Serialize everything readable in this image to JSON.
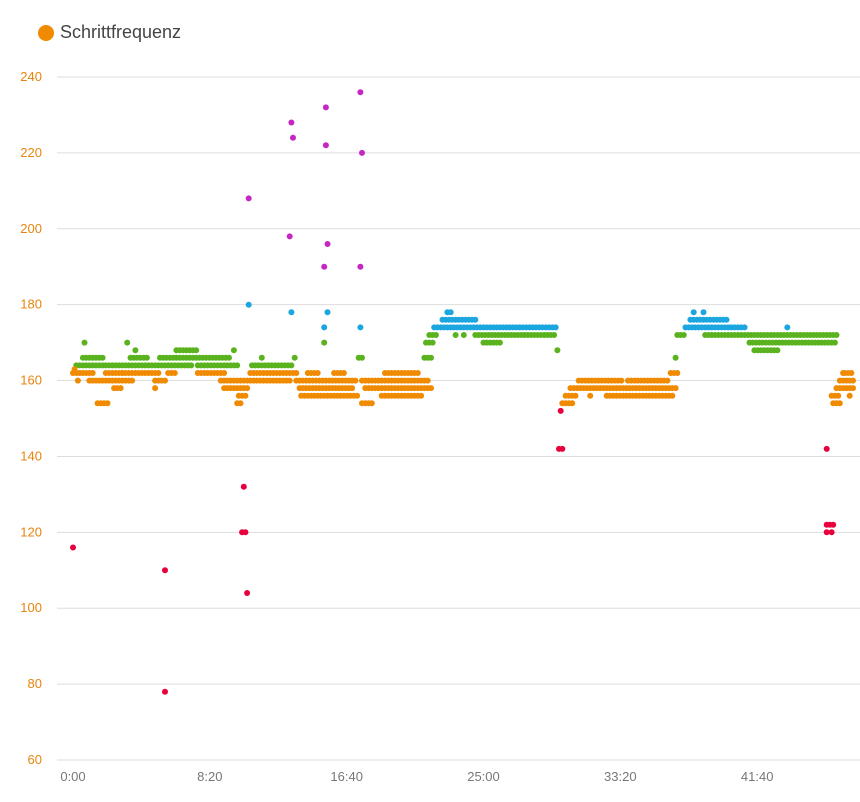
{
  "legend": {
    "label": "Schrittfrequenz",
    "color": "#f08a00"
  },
  "chart_data": {
    "type": "scatter",
    "title": "",
    "xlabel": "",
    "ylabel": "",
    "legend": [
      "Schrittfrequenz"
    ],
    "legend_position": "top-left",
    "grid": true,
    "x_unit": "minutes",
    "xlim": [
      0,
      47.5
    ],
    "ylim": [
      60,
      240
    ],
    "x_ticks": [
      "0:00",
      "8:20",
      "16:40",
      "25:00",
      "33:20",
      "41:40"
    ],
    "x_tick_values": [
      0,
      8.333,
      16.667,
      25,
      33.333,
      41.667
    ],
    "y_ticks": [
      "240",
      "220",
      "200",
      "180",
      "160",
      "140",
      "120",
      "100",
      "80",
      "60"
    ],
    "y_tick_values": [
      240,
      220,
      200,
      180,
      160,
      140,
      120,
      100,
      80,
      60
    ],
    "color_bands": [
      {
        "name": "red",
        "color": "#e8003d"
      },
      {
        "name": "orange",
        "color": "#f08a00"
      },
      {
        "name": "green",
        "color": "#5ab31e"
      },
      {
        "name": "blue",
        "color": "#1ba6e0"
      },
      {
        "name": "magenta",
        "color": "#c626c4"
      }
    ],
    "runs": [
      {
        "color": "orange",
        "x0": 0.0,
        "x1": 0.4,
        "y": 162
      },
      {
        "color": "orange",
        "x0": 0.4,
        "x1": 1.2,
        "y": 162
      },
      {
        "color": "orange",
        "x0": 1.0,
        "x1": 2.0,
        "y": 160
      },
      {
        "color": "orange",
        "x0": 1.5,
        "x1": 2.1,
        "y": 154
      },
      {
        "color": "orange",
        "x0": 2.0,
        "x1": 5.3,
        "y": 162
      },
      {
        "color": "orange",
        "x0": 2.2,
        "x1": 3.6,
        "y": 160
      },
      {
        "color": "orange",
        "x0": 2.5,
        "x1": 2.9,
        "y": 158
      },
      {
        "color": "orange",
        "x0": 5.0,
        "x1": 5.6,
        "y": 160
      },
      {
        "color": "orange",
        "x0": 5.8,
        "x1": 6.3,
        "y": 162
      },
      {
        "color": "orange",
        "x0": 7.6,
        "x1": 9.2,
        "y": 162
      },
      {
        "color": "orange",
        "x0": 9.0,
        "x1": 10.6,
        "y": 160
      },
      {
        "color": "orange",
        "x0": 9.2,
        "x1": 10.6,
        "y": 158
      },
      {
        "color": "orange",
        "x0": 10.1,
        "x1": 10.5,
        "y": 156
      },
      {
        "color": "orange",
        "x0": 10.0,
        "x1": 10.3,
        "y": 154
      },
      {
        "color": "orange",
        "x0": 10.8,
        "x1": 13.7,
        "y": 162
      },
      {
        "color": "orange",
        "x0": 10.8,
        "x1": 13.2,
        "y": 160
      },
      {
        "color": "orange",
        "x0": 13.6,
        "x1": 17.3,
        "y": 160
      },
      {
        "color": "orange",
        "x0": 13.8,
        "x1": 17.0,
        "y": 158
      },
      {
        "color": "orange",
        "x0": 14.3,
        "x1": 15.0,
        "y": 162
      },
      {
        "color": "orange",
        "x0": 15.9,
        "x1": 16.5,
        "y": 162
      },
      {
        "color": "orange",
        "x0": 13.9,
        "x1": 17.3,
        "y": 156
      },
      {
        "color": "orange",
        "x0": 17.6,
        "x1": 21.6,
        "y": 160
      },
      {
        "color": "orange",
        "x0": 17.8,
        "x1": 21.8,
        "y": 158
      },
      {
        "color": "orange",
        "x0": 18.8,
        "x1": 21.2,
        "y": 156
      },
      {
        "color": "orange",
        "x0": 17.6,
        "x1": 18.3,
        "y": 154
      },
      {
        "color": "orange",
        "x0": 19.0,
        "x1": 21.0,
        "y": 162
      },
      {
        "color": "orange",
        "x0": 29.8,
        "x1": 30.4,
        "y": 154
      },
      {
        "color": "orange",
        "x0": 30.0,
        "x1": 30.6,
        "y": 156
      },
      {
        "color": "orange",
        "x0": 30.3,
        "x1": 36.7,
        "y": 158
      },
      {
        "color": "orange",
        "x0": 30.8,
        "x1": 33.5,
        "y": 160
      },
      {
        "color": "orange",
        "x0": 33.8,
        "x1": 36.2,
        "y": 160
      },
      {
        "color": "orange",
        "x0": 32.5,
        "x1": 36.6,
        "y": 156
      },
      {
        "color": "orange",
        "x0": 36.4,
        "x1": 36.9,
        "y": 162
      },
      {
        "color": "orange",
        "x0": 46.2,
        "x1": 46.7,
        "y": 156
      },
      {
        "color": "orange",
        "x0": 46.3,
        "x1": 46.7,
        "y": 154
      },
      {
        "color": "orange",
        "x0": 46.5,
        "x1": 47.5,
        "y": 158
      },
      {
        "color": "orange",
        "x0": 46.7,
        "x1": 47.5,
        "y": 160
      },
      {
        "color": "orange",
        "x0": 47.0,
        "x1": 47.5,
        "y": 162
      },
      {
        "color": "green",
        "x0": 0.2,
        "x1": 2.8,
        "y": 164
      },
      {
        "color": "green",
        "x0": 0.6,
        "x1": 1.8,
        "y": 166
      },
      {
        "color": "green",
        "x0": 3.0,
        "x1": 7.2,
        "y": 164
      },
      {
        "color": "green",
        "x0": 3.5,
        "x1": 4.5,
        "y": 166
      },
      {
        "color": "green",
        "x0": 5.3,
        "x1": 9.6,
        "y": 166
      },
      {
        "color": "green",
        "x0": 6.3,
        "x1": 7.6,
        "y": 168
      },
      {
        "color": "green",
        "x0": 7.6,
        "x1": 10.0,
        "y": 164
      },
      {
        "color": "green",
        "x0": 10.9,
        "x1": 13.4,
        "y": 164
      },
      {
        "color": "green",
        "x0": 21.4,
        "x1": 21.8,
        "y": 166
      },
      {
        "color": "green",
        "x0": 21.5,
        "x1": 21.9,
        "y": 170
      },
      {
        "color": "green",
        "x0": 21.7,
        "x1": 22.2,
        "y": 172
      },
      {
        "color": "green",
        "x0": 24.5,
        "x1": 29.4,
        "y": 172
      },
      {
        "color": "green",
        "x0": 25.0,
        "x1": 26.0,
        "y": 170
      },
      {
        "color": "green",
        "x0": 36.8,
        "x1": 37.3,
        "y": 172
      },
      {
        "color": "green",
        "x0": 38.5,
        "x1": 46.6,
        "y": 172
      },
      {
        "color": "green",
        "x0": 41.5,
        "x1": 43.0,
        "y": 168
      },
      {
        "color": "green",
        "x0": 41.2,
        "x1": 46.5,
        "y": 170
      },
      {
        "color": "blue",
        "x0": 22.0,
        "x1": 29.4,
        "y": 174
      },
      {
        "color": "blue",
        "x0": 22.5,
        "x1": 24.5,
        "y": 176
      },
      {
        "color": "blue",
        "x0": 37.3,
        "x1": 41.0,
        "y": 174
      },
      {
        "color": "blue",
        "x0": 37.6,
        "x1": 39.8,
        "y": 176
      }
    ],
    "points": [
      {
        "color": "red",
        "x": 0.0,
        "y": 116
      },
      {
        "color": "orange",
        "x": 0.1,
        "y": 163
      },
      {
        "color": "orange",
        "x": 0.3,
        "y": 160
      },
      {
        "color": "green",
        "x": 0.7,
        "y": 170
      },
      {
        "color": "green",
        "x": 1.2,
        "y": 166
      },
      {
        "color": "green",
        "x": 3.3,
        "y": 170
      },
      {
        "color": "green",
        "x": 3.8,
        "y": 168
      },
      {
        "color": "orange",
        "x": 3.0,
        "y": 162
      },
      {
        "color": "orange",
        "x": 5.0,
        "y": 158
      },
      {
        "color": "red",
        "x": 5.6,
        "y": 110
      },
      {
        "color": "red",
        "x": 5.6,
        "y": 78
      },
      {
        "color": "green",
        "x": 9.8,
        "y": 168
      },
      {
        "color": "red",
        "x": 10.4,
        "y": 132
      },
      {
        "color": "red",
        "x": 10.3,
        "y": 120
      },
      {
        "color": "red",
        "x": 10.5,
        "y": 120
      },
      {
        "color": "red",
        "x": 10.6,
        "y": 104
      },
      {
        "color": "magenta",
        "x": 10.7,
        "y": 208
      },
      {
        "color": "blue",
        "x": 10.7,
        "y": 180
      },
      {
        "color": "green",
        "x": 11.5,
        "y": 166
      },
      {
        "color": "magenta",
        "x": 13.3,
        "y": 228
      },
      {
        "color": "magenta",
        "x": 13.4,
        "y": 224
      },
      {
        "color": "magenta",
        "x": 13.2,
        "y": 198
      },
      {
        "color": "blue",
        "x": 13.3,
        "y": 178
      },
      {
        "color": "green",
        "x": 13.5,
        "y": 166
      },
      {
        "color": "magenta",
        "x": 15.4,
        "y": 232
      },
      {
        "color": "magenta",
        "x": 15.4,
        "y": 222
      },
      {
        "color": "magenta",
        "x": 15.5,
        "y": 196
      },
      {
        "color": "magenta",
        "x": 15.3,
        "y": 190
      },
      {
        "color": "blue",
        "x": 15.5,
        "y": 178
      },
      {
        "color": "blue",
        "x": 15.3,
        "y": 174
      },
      {
        "color": "green",
        "x": 15.3,
        "y": 170
      },
      {
        "color": "magenta",
        "x": 17.5,
        "y": 236
      },
      {
        "color": "magenta",
        "x": 17.6,
        "y": 220
      },
      {
        "color": "magenta",
        "x": 17.5,
        "y": 190
      },
      {
        "color": "blue",
        "x": 17.5,
        "y": 174
      },
      {
        "color": "green",
        "x": 17.6,
        "y": 166
      },
      {
        "color": "green",
        "x": 17.4,
        "y": 166
      },
      {
        "color": "blue",
        "x": 22.8,
        "y": 178
      },
      {
        "color": "blue",
        "x": 23.0,
        "y": 178
      },
      {
        "color": "green",
        "x": 23.3,
        "y": 172
      },
      {
        "color": "green",
        "x": 23.8,
        "y": 172
      },
      {
        "color": "green",
        "x": 29.5,
        "y": 168
      },
      {
        "color": "red",
        "x": 29.7,
        "y": 152
      },
      {
        "color": "red",
        "x": 29.8,
        "y": 142
      },
      {
        "color": "red",
        "x": 29.6,
        "y": 142
      },
      {
        "color": "orange",
        "x": 31.5,
        "y": 156
      },
      {
        "color": "green",
        "x": 36.7,
        "y": 166
      },
      {
        "color": "blue",
        "x": 37.8,
        "y": 178
      },
      {
        "color": "blue",
        "x": 38.4,
        "y": 178
      },
      {
        "color": "green",
        "x": 38.9,
        "y": 172
      },
      {
        "color": "blue",
        "x": 43.5,
        "y": 174
      },
      {
        "color": "red",
        "x": 45.9,
        "y": 142
      },
      {
        "color": "red",
        "x": 45.9,
        "y": 122
      },
      {
        "color": "red",
        "x": 46.1,
        "y": 122
      },
      {
        "color": "red",
        "x": 46.3,
        "y": 122
      },
      {
        "color": "red",
        "x": 45.9,
        "y": 120
      },
      {
        "color": "red",
        "x": 46.2,
        "y": 120
      },
      {
        "color": "orange",
        "x": 46.9,
        "y": 162
      },
      {
        "color": "orange",
        "x": 47.3,
        "y": 156
      }
    ]
  }
}
